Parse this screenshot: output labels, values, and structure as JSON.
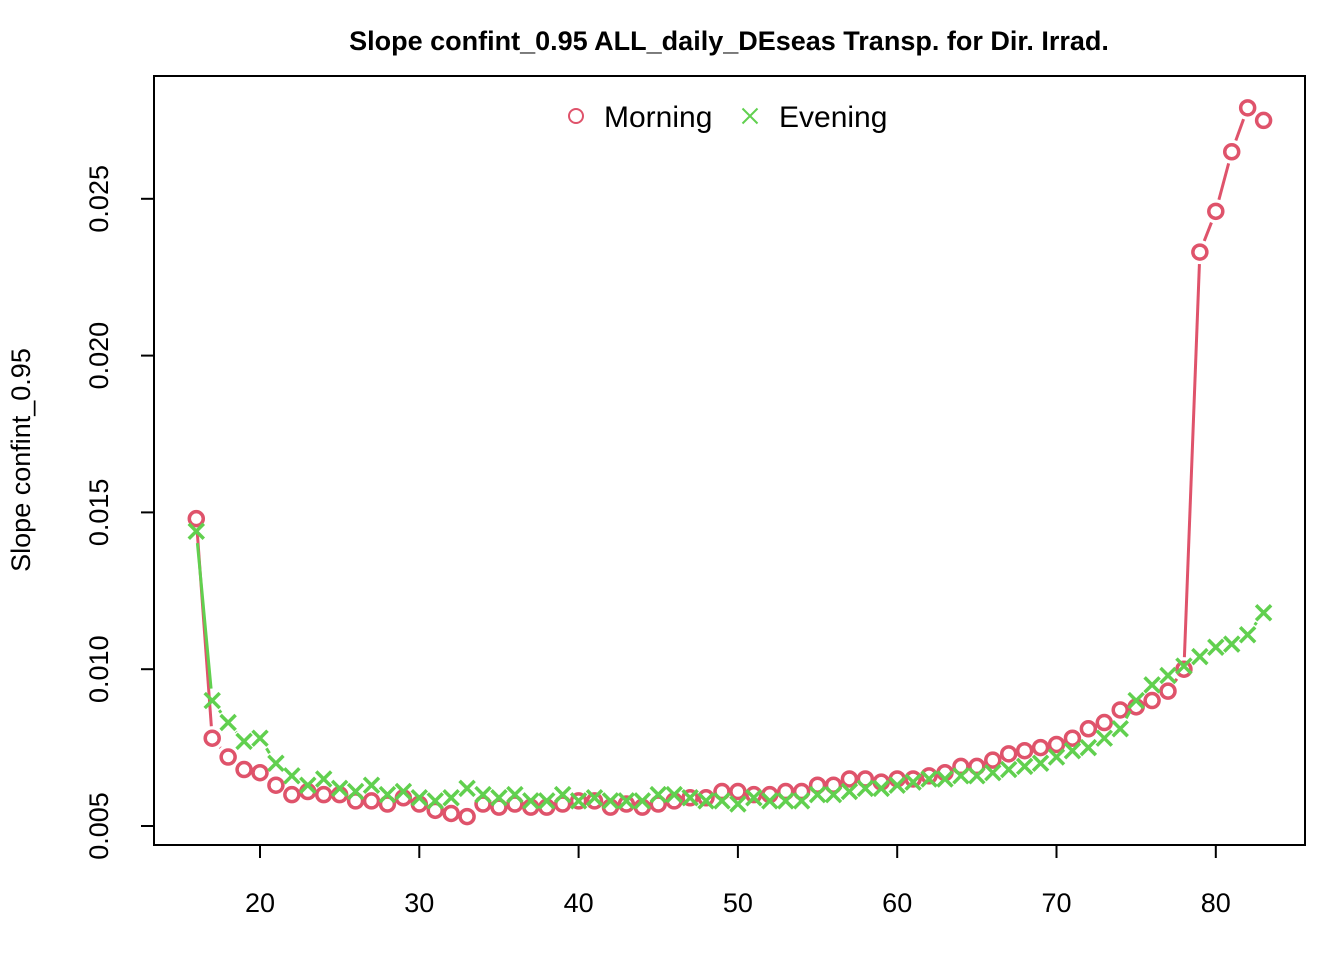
{
  "chart_data": {
    "type": "line",
    "title": "Slope confint_0.95 ALL_daily_DEseas Transp. for Dir. Irrad.",
    "xlabel": "",
    "ylabel": "Slope confint_0.95",
    "xlim": [
      16,
      83
    ],
    "ylim": [
      0.0053,
      0.0279
    ],
    "x_ticks": [
      20,
      30,
      40,
      50,
      60,
      70,
      80
    ],
    "x_tick_labels": [
      "20",
      "30",
      "40",
      "50",
      "60",
      "70",
      "80"
    ],
    "y_ticks": [
      0.005,
      0.01,
      0.015,
      0.02,
      0.025
    ],
    "y_tick_labels": [
      "0.005",
      "0.010",
      "0.015",
      "0.020",
      "0.025"
    ],
    "legend_position": "top",
    "x": [
      16,
      17,
      18,
      19,
      20,
      21,
      22,
      23,
      24,
      25,
      26,
      27,
      28,
      29,
      30,
      31,
      32,
      33,
      34,
      35,
      36,
      37,
      38,
      39,
      40,
      41,
      42,
      43,
      44,
      45,
      46,
      47,
      48,
      49,
      50,
      51,
      52,
      53,
      54,
      55,
      56,
      57,
      58,
      59,
      60,
      61,
      62,
      63,
      64,
      65,
      66,
      67,
      68,
      69,
      70,
      71,
      72,
      73,
      74,
      75,
      76,
      77,
      78,
      79,
      80,
      81,
      82,
      83
    ],
    "series": [
      {
        "name": "Morning",
        "color": "#DF536B",
        "marker": "circle",
        "values": [
          0.0148,
          0.0078,
          0.0072,
          0.0068,
          0.0067,
          0.0063,
          0.006,
          0.0061,
          0.006,
          0.006,
          0.0058,
          0.0058,
          0.0057,
          0.0059,
          0.0057,
          0.0055,
          0.0054,
          0.0053,
          0.0057,
          0.0056,
          0.0057,
          0.0056,
          0.0056,
          0.0057,
          0.0058,
          0.0058,
          0.0056,
          0.0057,
          0.0056,
          0.0057,
          0.0058,
          0.0059,
          0.0059,
          0.0061,
          0.0061,
          0.006,
          0.006,
          0.0061,
          0.0061,
          0.0063,
          0.0063,
          0.0065,
          0.0065,
          0.0064,
          0.0065,
          0.0065,
          0.0066,
          0.0067,
          0.0069,
          0.0069,
          0.0071,
          0.0073,
          0.0074,
          0.0075,
          0.0076,
          0.0078,
          0.0081,
          0.0083,
          0.0087,
          0.0088,
          0.009,
          0.0093,
          0.01,
          0.0233,
          0.0246,
          0.0265,
          0.0279,
          0.0275
        ]
      },
      {
        "name": "Evening",
        "color": "#61D04F",
        "marker": "cross",
        "values": [
          0.0144,
          0.009,
          0.0083,
          0.0077,
          0.0078,
          0.007,
          0.0066,
          0.0063,
          0.0065,
          0.0062,
          0.0061,
          0.0063,
          0.006,
          0.0061,
          0.0059,
          0.0058,
          0.0059,
          0.0062,
          0.006,
          0.0059,
          0.006,
          0.0058,
          0.0058,
          0.006,
          0.0058,
          0.0059,
          0.0058,
          0.0058,
          0.0058,
          0.006,
          0.006,
          0.0059,
          0.0058,
          0.0058,
          0.0057,
          0.0059,
          0.0058,
          0.0058,
          0.0058,
          0.006,
          0.006,
          0.0061,
          0.0062,
          0.0062,
          0.0063,
          0.0064,
          0.0065,
          0.0065,
          0.0066,
          0.0066,
          0.0067,
          0.0068,
          0.0069,
          0.007,
          0.0072,
          0.0074,
          0.0075,
          0.0078,
          0.0081,
          0.009,
          0.0095,
          0.0098,
          0.0101,
          0.0104,
          0.0107,
          0.0108,
          0.0111,
          0.0118
        ]
      }
    ]
  }
}
